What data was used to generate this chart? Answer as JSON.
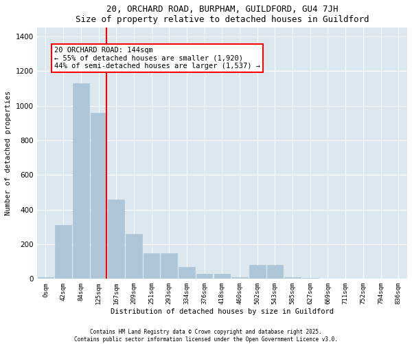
{
  "title": "20, ORCHARD ROAD, BURPHAM, GUILDFORD, GU4 7JH",
  "subtitle": "Size of property relative to detached houses in Guildford",
  "xlabel": "Distribution of detached houses by size in Guildford",
  "ylabel": "Number of detached properties",
  "bar_color": "#aec6d8",
  "bar_edgecolor": "#aec6d8",
  "vline_color": "red",
  "categories": [
    "0sqm",
    "42sqm",
    "84sqm",
    "125sqm",
    "167sqm",
    "209sqm",
    "251sqm",
    "293sqm",
    "334sqm",
    "376sqm",
    "418sqm",
    "460sqm",
    "502sqm",
    "543sqm",
    "585sqm",
    "627sqm",
    "669sqm",
    "711sqm",
    "752sqm",
    "794sqm",
    "836sqm"
  ],
  "values": [
    10,
    310,
    1130,
    960,
    460,
    260,
    150,
    150,
    70,
    30,
    30,
    10,
    80,
    80,
    10,
    5,
    0,
    0,
    0,
    0,
    0
  ],
  "ylim": [
    0,
    1450
  ],
  "yticks": [
    0,
    200,
    400,
    600,
    800,
    1000,
    1200,
    1400
  ],
  "annotation_text": "20 ORCHARD ROAD: 144sqm\n← 55% of detached houses are smaller (1,920)\n44% of semi-detached houses are larger (1,537) →",
  "bg_color": "#dce8f0",
  "footer1": "Contains HM Land Registry data © Crown copyright and database right 2025.",
  "footer2": "Contains public sector information licensed under the Open Government Licence v3.0."
}
